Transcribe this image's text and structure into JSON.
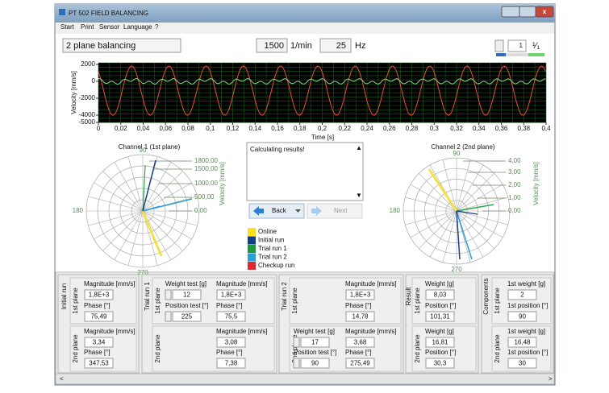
{
  "window": {
    "title": "PT 502 FIELD BALANCING"
  },
  "menu": [
    "Start",
    "Print",
    "Sensor",
    "Language",
    "?"
  ],
  "toolbar": {
    "mode": "2 plane balancing",
    "speed": "1500",
    "speed_unit": "1/min",
    "frequency": "25",
    "frequency_unit": "Hz",
    "run_index": "1",
    "run_fraction": "¹⁄₁"
  },
  "time_chart": {
    "y_label": "Velocity [mm/s]",
    "x_label": "Time [s]",
    "yticks": [
      "2000",
      "0",
      "-2000",
      "-4000",
      "-5000"
    ],
    "xticks": [
      "0",
      "0,02",
      "0,04",
      "0,06",
      "0,08",
      "0,1",
      "0,12",
      "0,14",
      "0,16",
      "0,18",
      "0,2",
      "0,22",
      "0,24",
      "0,26",
      "0,28",
      "0,3",
      "0,32",
      "0,34",
      "0,36",
      "0,38",
      "0,4"
    ]
  },
  "channel_1": {
    "title": "Channel 1 (1st plane)",
    "angle_labels": [
      "90",
      "180",
      "270"
    ],
    "scale_labels": [
      "1800,00",
      "1500,00",
      "1000,00",
      "500,00",
      "0,00"
    ],
    "axis_label": "Velocity [mm/s]"
  },
  "channel_2": {
    "title": "Channel 2 (2nd plane)",
    "angle_labels": [
      "90",
      "180",
      "270"
    ],
    "scale_labels": [
      "4,00",
      "3,00",
      "2,00",
      "1,00",
      "0,00"
    ],
    "axis_label": "Velocity [mm/s]"
  },
  "message": "Calculating results!",
  "buttons": {
    "back": "Back",
    "next": "Next"
  },
  "legend": [
    "Online",
    "Initial run",
    "Trial run 1",
    "Trial run 2",
    "Checkup run"
  ],
  "panels": [
    {
      "title": "Initial run",
      "planes": [
        {
          "label": "1st plane",
          "fields": [
            {
              "label": "Magnitude [mm/s]",
              "value": "1,8E+3"
            },
            {
              "label": "Phase [°]",
              "value": "75,49"
            }
          ]
        },
        {
          "label": "2nd plane",
          "fields": [
            {
              "label": "Magnitude [mm/s]",
              "value": "3,34"
            },
            {
              "label": "Phase [°]",
              "value": "347,53"
            }
          ]
        }
      ]
    },
    {
      "title": "Trial run 1",
      "planes": [
        {
          "label": "1st plane",
          "fields": [
            {
              "label": "Weight test [g]",
              "value": "12"
            },
            {
              "label": "Position test [°]",
              "value": "225"
            },
            {
              "label": "Magnitude [mm/s]",
              "value": "1,8E+3"
            },
            {
              "label": "Phase [°]",
              "value": "75,5"
            }
          ]
        },
        {
          "label": "2nd plane",
          "fields": [
            {
              "label": "Magnitude [mm/s]",
              "value": "3,08"
            },
            {
              "label": "Phase [°]",
              "value": "7,38"
            }
          ]
        }
      ]
    },
    {
      "title": "Trial run 2",
      "planes": [
        {
          "label": "1st plane",
          "fields": [
            {
              "label": "Magnitude [mm/s]",
              "value": "1,8E+3"
            },
            {
              "label": "Phase [°]",
              "value": "14,78"
            }
          ]
        },
        {
          "label": "2nd plane",
          "fields": [
            {
              "label": "Weight test [g]",
              "value": "17"
            },
            {
              "label": "Position test [°]",
              "value": "90"
            },
            {
              "label": "Magnitude [mm/s]",
              "value": "3,68"
            },
            {
              "label": "Phase [°]",
              "value": "275,49"
            }
          ]
        }
      ]
    },
    {
      "title": "Result",
      "planes": [
        {
          "label": "1st plane",
          "fields": [
            {
              "label": "Weight [g]",
              "value": "8,03"
            },
            {
              "label": "Position [°]",
              "value": "101,31"
            }
          ]
        },
        {
          "label": "2nd plane",
          "fields": [
            {
              "label": "Weight [g]",
              "value": "16,81"
            },
            {
              "label": "Position [°]",
              "value": "30,3"
            }
          ]
        }
      ]
    },
    {
      "title": "Components",
      "planes": [
        {
          "label": "1st plane",
          "fields": [
            {
              "label": "1st weight [g]",
              "value": "2"
            },
            {
              "label": "1st position [°]",
              "value": "90"
            }
          ]
        },
        {
          "label": "2nd plane",
          "fields": [
            {
              "label": "1st weight [g]",
              "value": "16,48"
            },
            {
              "label": "1st position [°]",
              "value": "30"
            }
          ]
        }
      ]
    }
  ]
}
